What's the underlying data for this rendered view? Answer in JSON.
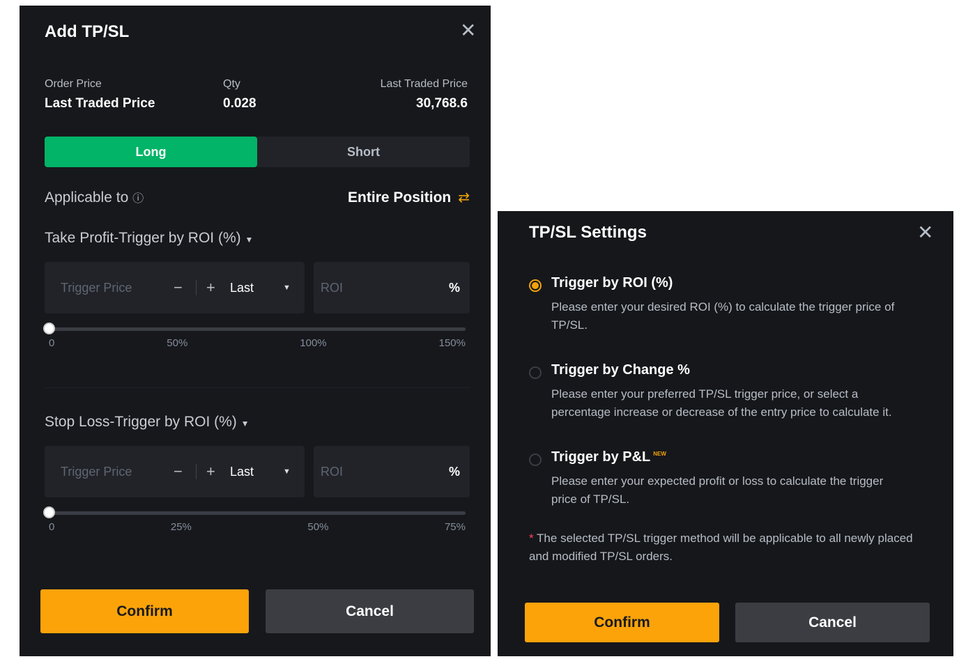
{
  "add_tpsl": {
    "title": "Add TP/SL",
    "order_price_label": "Order Price",
    "order_price_value": "Last Traded Price",
    "qty_label": "Qty",
    "qty_value": "0.028",
    "ltp_label": "Last Traded Price",
    "ltp_value": "30,768.6",
    "tabs": [
      "Long",
      "Short"
    ],
    "active_tab": "Long",
    "applicable_label": "Applicable to",
    "applicable_value": "Entire Position",
    "take_profit": {
      "title": "Take Profit-Trigger by ROI (%)",
      "trigger_placeholder": "Trigger Price",
      "minus": "−",
      "plus": "+",
      "price_type": "Last",
      "roi_placeholder": "ROI",
      "roi_unit": "%",
      "slider_value": 0,
      "ticks": [
        "0",
        "50%",
        "100%",
        "150%"
      ]
    },
    "stop_loss": {
      "title": "Stop Loss-Trigger by ROI (%)",
      "trigger_placeholder": "Trigger Price",
      "minus": "−",
      "plus": "+",
      "price_type": "Last",
      "roi_placeholder": "ROI",
      "roi_unit": "%",
      "slider_value": 0,
      "ticks": [
        "0",
        "25%",
        "50%",
        "75%"
      ]
    },
    "confirm": "Confirm",
    "cancel": "Cancel"
  },
  "settings": {
    "title": "TP/SL Settings",
    "options": [
      {
        "title": "Trigger by ROI (%)",
        "desc": "Please enter your desired ROI (%) to calculate the trigger price of TP/SL.",
        "selected": true
      },
      {
        "title": "Trigger by Change %",
        "desc": "Please enter your preferred TP/SL trigger price, or select a percentage increase or decrease of the entry price to calculate it.",
        "selected": false
      },
      {
        "title": "Trigger by P&L",
        "badge": "NEW",
        "desc": "Please enter your expected profit or loss to calculate the trigger price of TP/SL.",
        "selected": false
      }
    ],
    "note_star": "*",
    "note": "The selected TP/SL trigger method will be applicable to all newly placed and modified TP/SL orders.",
    "confirm": "Confirm",
    "cancel": "Cancel"
  },
  "colors": {
    "long": "#02b467",
    "accent": "#fca30a",
    "panel": "#17181c"
  }
}
